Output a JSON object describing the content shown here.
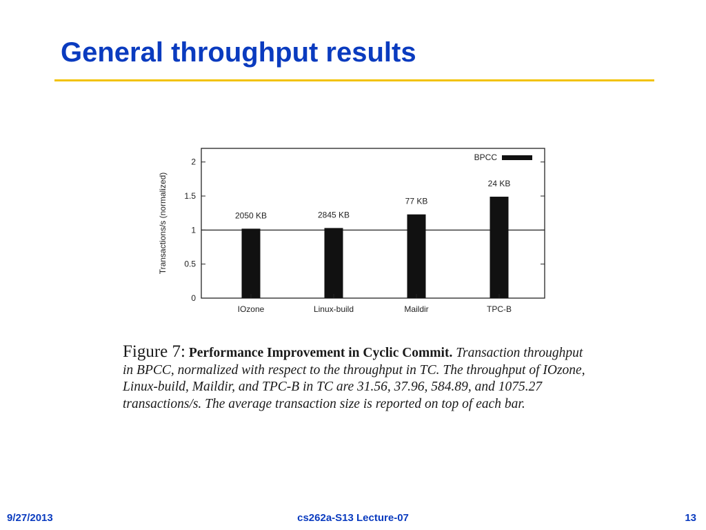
{
  "slide": {
    "title": "General throughput results",
    "footer": {
      "date": "9/27/2013",
      "course": "cs262a-S13 Lecture-07",
      "page": "13"
    }
  },
  "colors": {
    "title": "#0a3bbf",
    "rule": "#f2c200",
    "bar": "#111111"
  },
  "caption": {
    "label": "Figure 7:",
    "bold": "Performance Improvement in Cyclic Commit.",
    "text": "Transaction throughput in BPCC, normalized with respect to the throughput in TC. The throughput of IOzone, Linux-build, Maildir, and TPC-B in TC are 31.56, 37.96, 584.89, and 1075.27 transactions/s. The average transaction size is reported on top of each bar."
  },
  "chart_data": {
    "type": "bar",
    "categories": [
      "IOzone",
      "Linux-build",
      "Maildir",
      "TPC-B"
    ],
    "series": [
      {
        "name": "BPCC",
        "values": [
          1.02,
          1.03,
          1.23,
          1.49
        ]
      }
    ],
    "data_labels": [
      "2050 KB",
      "2845 KB",
      "77 KB",
      "24 KB"
    ],
    "ylabel": "Transactions/s (normalized)",
    "xlabel": "",
    "ylim": [
      0,
      2.2
    ],
    "yticks": [
      0,
      0.5,
      1,
      1.5,
      2
    ],
    "ytick_labels": [
      "0",
      "0.5",
      "1",
      "1.5",
      "2"
    ],
    "reference_line": 1,
    "legend": "top-right",
    "grid": false
  }
}
